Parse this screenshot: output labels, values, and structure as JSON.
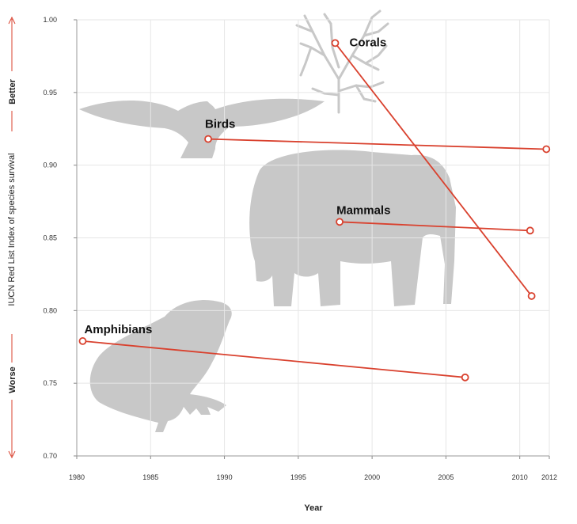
{
  "chart_data": {
    "type": "line",
    "xlabel": "Year",
    "ylabel": "IUCN Red List Index of species survival",
    "better_label": "Better",
    "worse_label": "Worse",
    "xlim": [
      1980,
      2012
    ],
    "ylim": [
      0.7,
      1.0
    ],
    "xticks": [
      1980,
      1985,
      1990,
      1995,
      2000,
      2005,
      2010,
      2012
    ],
    "yticks": [
      "1.00",
      "0.95",
      "0.90",
      "0.85",
      "0.80",
      "0.75",
      "0.70"
    ],
    "grid": true,
    "series": [
      {
        "name": "Corals",
        "color": "#d9412e",
        "points": [
          [
            1997.5,
            0.984
          ],
          [
            2010.8,
            0.81
          ]
        ]
      },
      {
        "name": "Birds",
        "color": "#d9412e",
        "points": [
          [
            1988.9,
            0.918
          ],
          [
            2011.8,
            0.911
          ]
        ]
      },
      {
        "name": "Mammals",
        "color": "#d9412e",
        "points": [
          [
            1997.8,
            0.861
          ],
          [
            2010.7,
            0.855
          ]
        ]
      },
      {
        "name": "Amphibians",
        "color": "#d9412e",
        "points": [
          [
            1980.4,
            0.779
          ],
          [
            2006.3,
            0.754
          ]
        ]
      }
    ],
    "silhouettes": [
      "coral-icon",
      "bird-icon",
      "elephant-icon",
      "frog-icon"
    ]
  }
}
